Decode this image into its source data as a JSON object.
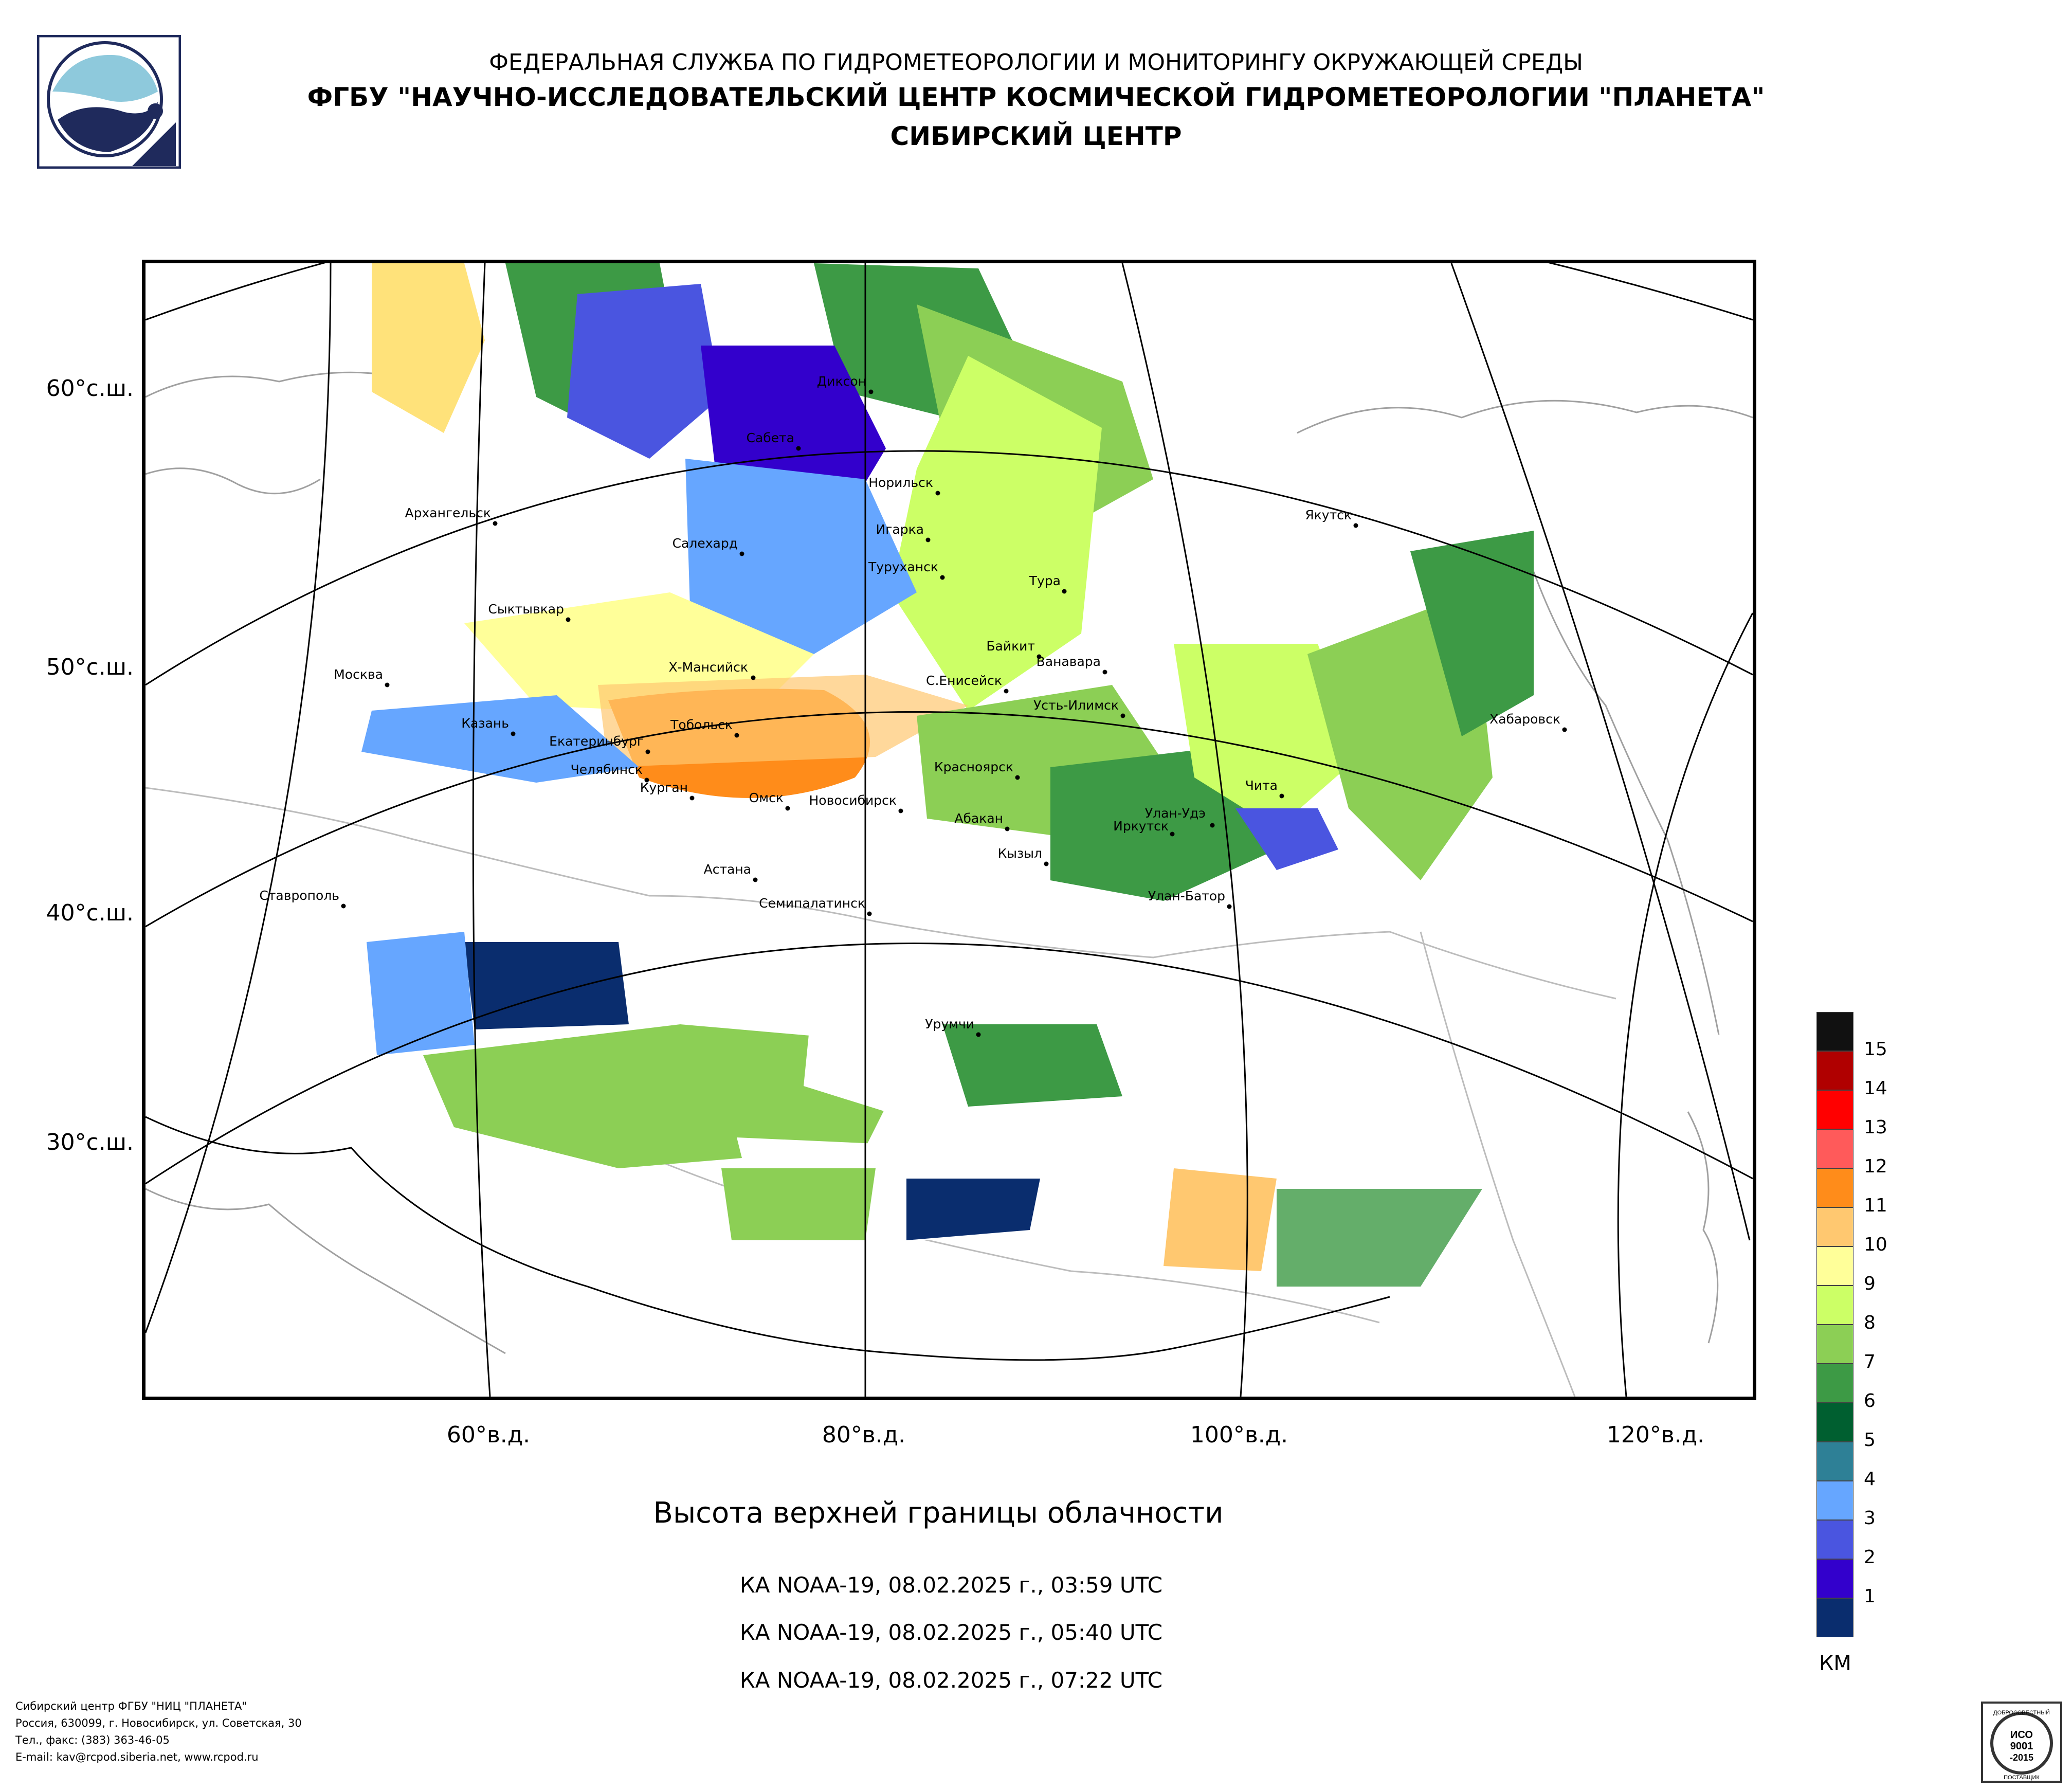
{
  "header": {
    "line1": "ФЕДЕРАЛЬНАЯ СЛУЖБА ПО ГИДРОМЕТЕОРОЛОГИИ И МОНИТОРИНГУ ОКРУЖАЮЩЕЙ СРЕДЫ",
    "line2": "ФГБУ \"НАУЧНО-ИССЛЕДОВАТЕЛЬСКИЙ ЦЕНТР КОСМИЧЕСКОЙ ГИДРОМЕТЕОРОЛОГИИ \"ПЛАНЕТА\"",
    "line3": "СИБИРСКИЙ ЦЕНТР"
  },
  "map": {
    "cities": [
      {
        "name": "Диксон"
      },
      {
        "name": "Сабета"
      },
      {
        "name": "Норильск"
      },
      {
        "name": "Архангельск"
      },
      {
        "name": "Салехард"
      },
      {
        "name": "Игарка"
      },
      {
        "name": "Туруханск"
      },
      {
        "name": "Якутск"
      },
      {
        "name": "Тура"
      },
      {
        "name": "Сыктывкар"
      },
      {
        "name": "Байкит"
      },
      {
        "name": "Ванавара"
      },
      {
        "name": "Х-Мансийск"
      },
      {
        "name": "Москва"
      },
      {
        "name": "С.Енисейск"
      },
      {
        "name": "Усть-Илимск"
      },
      {
        "name": "Хабаровск"
      },
      {
        "name": "Казань"
      },
      {
        "name": "Тобольск"
      },
      {
        "name": "Екатеринбург"
      },
      {
        "name": "Красноярск"
      },
      {
        "name": "Челябинск"
      },
      {
        "name": "Курган"
      },
      {
        "name": "Омск"
      },
      {
        "name": "Чита"
      },
      {
        "name": "Новосибирск"
      },
      {
        "name": "Абакан"
      },
      {
        "name": "Улан-Удэ"
      },
      {
        "name": "Иркутск"
      },
      {
        "name": "Кызыл"
      },
      {
        "name": "Астана"
      },
      {
        "name": "Ставрополь"
      },
      {
        "name": "Семипалатинск"
      },
      {
        "name": "Улан-Батор"
      },
      {
        "name": "Урумчи"
      }
    ],
    "lat_labels": [
      "60°с.ш.",
      "50°с.ш.",
      "40°с.ш.",
      "30°с.ш."
    ],
    "lon_labels": [
      "60°в.д.",
      "80°в.д.",
      "100°в.д.",
      "120°в.д."
    ]
  },
  "title": "Высота верхней границы облачности",
  "passes": [
    "КА NOAA-19, 08.02.2025 г., 03:59 UTC",
    "КА NOAA-19, 08.02.2025 г., 05:40 UTC",
    "КА NOAA-19, 08.02.2025 г., 07:22 UTC"
  ],
  "legend": {
    "levels": [
      {
        "label": "15",
        "color": "#111111"
      },
      {
        "label": "14",
        "color": "#b00000"
      },
      {
        "label": "13",
        "color": "#ff0000"
      },
      {
        "label": "12",
        "color": "#ff5a5a"
      },
      {
        "label": "11",
        "color": "#ff8c1a"
      },
      {
        "label": "10",
        "color": "#ffc870"
      },
      {
        "label": "9",
        "color": "#ffff99"
      },
      {
        "label": "8",
        "color": "#ccff66"
      },
      {
        "label": "7",
        "color": "#8ccf55"
      },
      {
        "label": "6",
        "color": "#3d9a45"
      },
      {
        "label": "5",
        "color": "#005f30"
      },
      {
        "label": "4",
        "color": "#2e8096"
      },
      {
        "label": "3",
        "color": "#66a6ff"
      },
      {
        "label": "2",
        "color": "#4a55e0"
      },
      {
        "label": "1",
        "color": "#3300cc"
      },
      {
        "label": "",
        "color": "#0a2d6e"
      }
    ],
    "unit": "КМ"
  },
  "footer": {
    "line1": "Сибирский центр ФГБУ \"НИЦ \"ПЛАНЕТА\"",
    "line2": "Россия, 630099, г. Новосибирск, ул. Советская, 30",
    "line3": "Тел., факс: (383) 363-46-05",
    "line4": "E-mail: kav@rcpod.siberia.net, www.rcpod.ru"
  },
  "iso_badge": {
    "text_top": "ДОБРОСОВЕСТНЫЙ",
    "text_mid1": "ИСО",
    "text_mid2": "9001",
    "text_mid3": "-2015",
    "text_bottom": "ПОСТАВЩИК"
  },
  "colors": {
    "grid_line": "#000000",
    "coast_line": "#9a9a9a"
  }
}
